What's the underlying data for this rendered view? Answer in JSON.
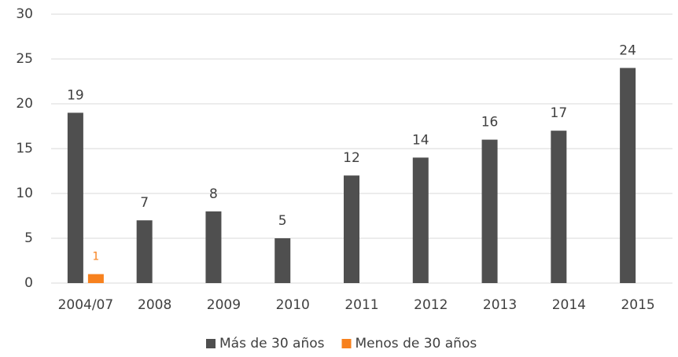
{
  "chart_data": {
    "type": "bar",
    "categories": [
      "2004/07",
      "2008",
      "2009",
      "2010",
      "2011",
      "2012",
      "2013",
      "2014",
      "2015"
    ],
    "series": [
      {
        "name": "Más de 30 años",
        "color": "#4f4f4f",
        "values": [
          19,
          7,
          8,
          5,
          12,
          14,
          16,
          17,
          24
        ]
      },
      {
        "name": "Menos de 30 años",
        "color": "#f7811e",
        "values": [
          1,
          null,
          null,
          null,
          null,
          null,
          null,
          null,
          null
        ]
      }
    ],
    "ylim": [
      0,
      30
    ],
    "yticks": [
      0,
      5,
      10,
      15,
      20,
      25,
      30
    ],
    "grid": true,
    "legend": "bottom"
  }
}
